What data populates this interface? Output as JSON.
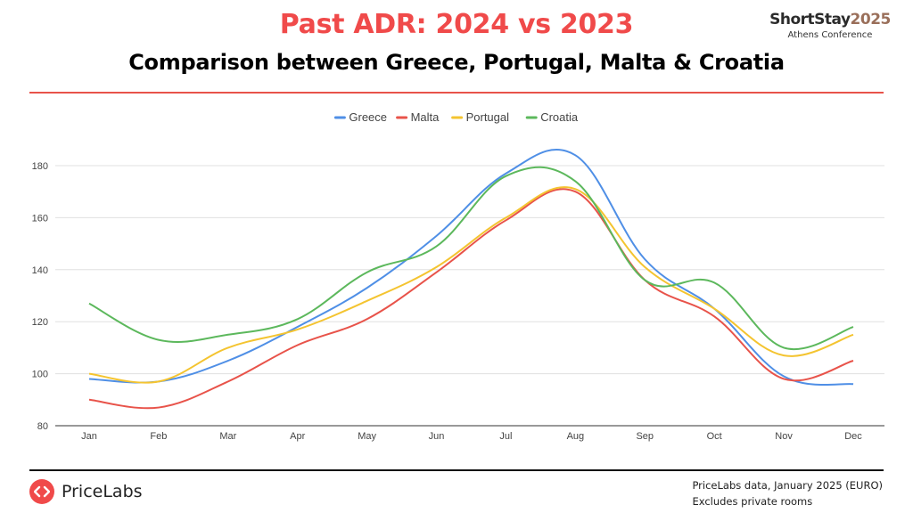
{
  "header": {
    "title": "Past ADR: 2024 vs 2023",
    "subtitle": "Comparison between Greece, Portugal, Malta & Croatia"
  },
  "brand": {
    "name_part1": "ShortStay",
    "name_part2": "2025",
    "tagline": "Athens Conference"
  },
  "footer": {
    "logo_text": "PriceLabs",
    "note_line1": "PriceLabs data, January 2025 (EURO)",
    "note_line2": "Excludes private rooms"
  },
  "chart_data": {
    "type": "line",
    "categories": [
      "Jan",
      "Feb",
      "Mar",
      "Apr",
      "May",
      "Jun",
      "Jul",
      "Aug",
      "Sep",
      "Oct",
      "Nov",
      "Dec"
    ],
    "ylim": [
      80,
      190
    ],
    "yticks": [
      80,
      100,
      120,
      140,
      160,
      180
    ],
    "grid": true,
    "legend_position": "top",
    "series": [
      {
        "name": "Greece",
        "color": "#4f8fe6",
        "values": [
          98,
          97,
          105,
          118,
          133,
          153,
          177,
          184,
          144,
          125,
          99,
          96
        ]
      },
      {
        "name": "Malta",
        "color": "#e8534a",
        "values": [
          90,
          87,
          97,
          111,
          121,
          139,
          159,
          170,
          136,
          122,
          98,
          105
        ]
      },
      {
        "name": "Portugal",
        "color": "#f4c430",
        "values": [
          100,
          97,
          110,
          117,
          128,
          141,
          160,
          171,
          141,
          125,
          107,
          115
        ]
      },
      {
        "name": "Croatia",
        "color": "#5cb85c",
        "values": [
          127,
          113,
          115,
          121,
          139,
          149,
          176,
          174,
          136,
          135,
          110,
          118
        ]
      }
    ]
  }
}
